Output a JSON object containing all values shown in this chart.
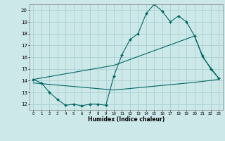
{
  "title": "",
  "xlabel": "Humidex (Indice chaleur)",
  "ylabel": "",
  "background_color": "#cce8e8",
  "grid_color": "#aacfcf",
  "line_color": "#006666",
  "xlim": [
    -0.5,
    23.5
  ],
  "ylim": [
    11.5,
    20.5
  ],
  "yticks": [
    12,
    13,
    14,
    15,
    16,
    17,
    18,
    19,
    20
  ],
  "xticks": [
    0,
    1,
    2,
    3,
    4,
    5,
    6,
    7,
    8,
    9,
    10,
    11,
    12,
    13,
    14,
    15,
    16,
    17,
    18,
    19,
    20,
    21,
    22,
    23
  ],
  "line1_x": [
    0,
    1,
    2,
    3,
    4,
    5,
    6,
    7,
    8,
    9,
    10,
    11,
    12,
    13,
    14,
    15,
    16,
    17,
    18,
    19,
    20,
    21,
    22,
    23
  ],
  "line1_y": [
    14.1,
    13.8,
    13.0,
    12.4,
    11.9,
    12.0,
    11.85,
    12.0,
    12.0,
    11.9,
    14.4,
    16.2,
    17.5,
    18.0,
    19.7,
    20.5,
    19.9,
    19.0,
    19.5,
    19.0,
    17.8,
    16.1,
    15.0,
    14.2
  ],
  "line2_x": [
    0,
    10,
    20,
    21,
    23
  ],
  "line2_y": [
    14.1,
    15.3,
    17.8,
    16.0,
    14.2
  ],
  "line3_x": [
    0,
    10,
    20,
    23
  ],
  "line3_y": [
    13.8,
    13.2,
    13.85,
    14.1
  ]
}
